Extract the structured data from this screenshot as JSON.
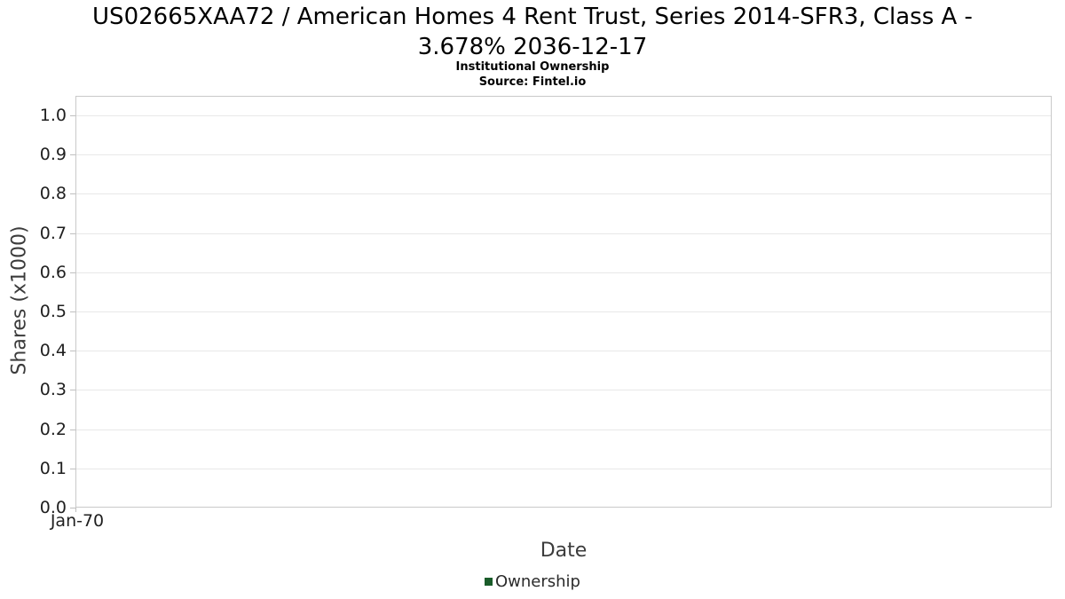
{
  "chart_data": {
    "type": "line",
    "title": "US02665XAA72 / American Homes 4 Rent Trust, Series 2014-SFR3, Class A - 3.678% 2036-12-17",
    "subtitle": "Institutional Ownership",
    "source": "Source: Fintel.io",
    "xlabel": "Date",
    "ylabel": "Shares (x1000)",
    "x_ticks": [
      "Jan-70"
    ],
    "y_ticks": [
      "0.0",
      "0.1",
      "0.2",
      "0.3",
      "0.4",
      "0.5",
      "0.6",
      "0.7",
      "0.8",
      "0.9",
      "1.0"
    ],
    "ylim": [
      0,
      1.05
    ],
    "grid": "horizontal",
    "legend_position": "bottom-center",
    "series": [
      {
        "name": "Ownership",
        "color": "#1a5c2a",
        "x": [],
        "values": []
      }
    ]
  }
}
